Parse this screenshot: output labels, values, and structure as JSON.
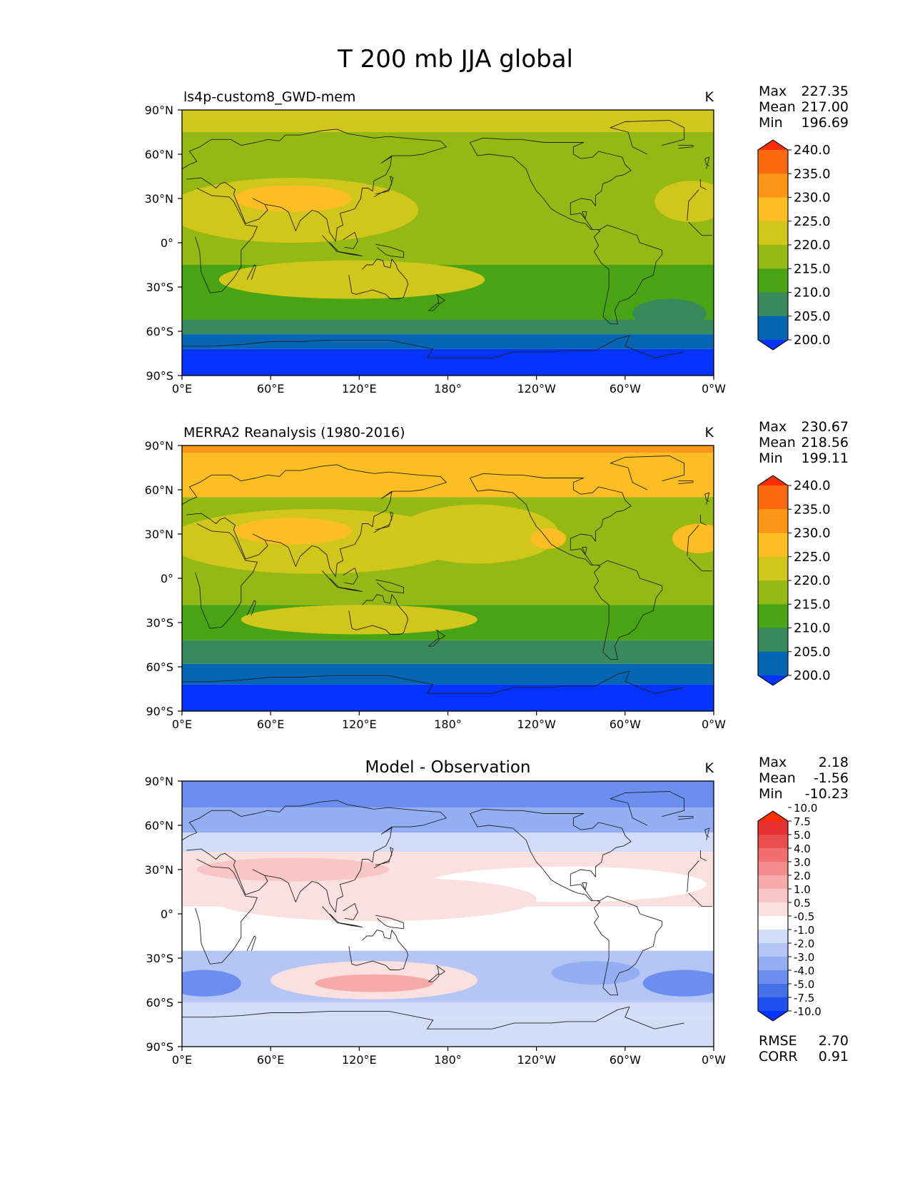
{
  "figure": {
    "title": "T 200 mb JJA global",
    "units": "K",
    "x_ticks": [
      "0°E",
      "60°E",
      "120°E",
      "180°",
      "120°W",
      "60°W",
      "0°W"
    ],
    "y_ticks": [
      "90°N",
      "60°N",
      "30°N",
      "0°",
      "30°S",
      "60°S",
      "90°S"
    ],
    "stat_labels": [
      "Max",
      "Mean",
      "Min"
    ],
    "extra_stat_labels": [
      "RMSE",
      "CORR"
    ],
    "colors": {
      "cb_abs": [
        "#0434fc",
        "#0466b2",
        "#388a5c",
        "#48a414",
        "#94b814",
        "#d0c61c",
        "#fcbe22",
        "#fc9618",
        "#fc6a10",
        "#fc2e06"
      ],
      "cb_diff": [
        "#0434fc",
        "#1e50f0",
        "#4670e6",
        "#6c8ef0",
        "#94aef4",
        "#b6c6f4",
        "#d4ddf8",
        "#ffffff",
        "#fbe0e0",
        "#f8c6c6",
        "#f6aaaa",
        "#f48c8c",
        "#f06e6e",
        "#ea4e4e",
        "#e43030",
        "#fc2e06"
      ]
    }
  },
  "chart_data": [
    {
      "type": "heatmap",
      "panel": "test",
      "title": "ls4p-custom8_GWD-mem",
      "title_style": "left",
      "units": "K",
      "stats": {
        "Max": "227.35",
        "Mean": "217.00",
        "Min": "196.69"
      },
      "colorbar": {
        "levels": [
          "200.0",
          "205.0",
          "210.0",
          "215.0",
          "220.0",
          "225.0",
          "230.0",
          "235.0",
          "240.0"
        ],
        "extend": "both"
      },
      "xlim": [
        0,
        360
      ],
      "ylim": [
        -90,
        90
      ],
      "zonal_bands": [
        {
          "lat": [
            75,
            90
          ],
          "value": 220
        },
        {
          "lat": [
            -15,
            75
          ],
          "value": 215
        },
        {
          "lat": [
            -52,
            -15
          ],
          "value": 210
        },
        {
          "lat": [
            -62,
            -52
          ],
          "value": 205
        },
        {
          "lat": [
            -72,
            -62
          ],
          "value": 200
        },
        {
          "lat": [
            -90,
            -72
          ],
          "value": 195
        }
      ],
      "regions": [
        {
          "lon": 75,
          "lat": 22,
          "rlon": 85,
          "rlat": 22,
          "value": 220
        },
        {
          "lon": 75,
          "lat": 30,
          "rlon": 40,
          "rlat": 9,
          "value": 225
        },
        {
          "lon": 115,
          "lat": -25,
          "rlon": 90,
          "rlat": 13,
          "value": 220
        },
        {
          "lon": 345,
          "lat": 28,
          "rlon": 25,
          "rlat": 14,
          "value": 220
        },
        {
          "lon": 200,
          "lat": 82,
          "rlon": 190,
          "rlat": 7,
          "value": 220
        },
        {
          "lon": 330,
          "lat": -48,
          "rlon": 25,
          "rlat": 10,
          "value": 205
        }
      ]
    },
    {
      "type": "heatmap",
      "panel": "reference",
      "title": "MERRA2 Reanalysis (1980-2016)",
      "title_style": "left",
      "units": "K",
      "stats": {
        "Max": "230.67",
        "Mean": "218.56",
        "Min": "199.11"
      },
      "colorbar": {
        "levels": [
          "200.0",
          "205.0",
          "210.0",
          "215.0",
          "220.0",
          "225.0",
          "230.0",
          "235.0",
          "240.0"
        ],
        "extend": "both"
      },
      "xlim": [
        0,
        360
      ],
      "ylim": [
        -90,
        90
      ],
      "zonal_bands": [
        {
          "lat": [
            85,
            90
          ],
          "value": 230
        },
        {
          "lat": [
            55,
            85
          ],
          "value": 225
        },
        {
          "lat": [
            -18,
            55
          ],
          "value": 215
        },
        {
          "lat": [
            -42,
            -18
          ],
          "value": 210
        },
        {
          "lat": [
            -58,
            -42
          ],
          "value": 205
        },
        {
          "lat": [
            -72,
            -58
          ],
          "value": 200
        },
        {
          "lat": [
            -90,
            -72
          ],
          "value": 195
        }
      ],
      "regions": [
        {
          "lon": 90,
          "lat": 25,
          "rlon": 100,
          "rlat": 22,
          "value": 220
        },
        {
          "lon": 200,
          "lat": 30,
          "rlon": 55,
          "rlat": 20,
          "value": 220
        },
        {
          "lon": 75,
          "lat": 32,
          "rlon": 40,
          "rlat": 9,
          "value": 225
        },
        {
          "lon": 120,
          "lat": -28,
          "rlon": 80,
          "rlat": 10,
          "value": 220
        },
        {
          "lon": 248,
          "lat": 27,
          "rlon": 12,
          "rlat": 7,
          "value": 225
        },
        {
          "lon": 350,
          "lat": 27,
          "rlon": 18,
          "rlat": 10,
          "value": 225
        }
      ]
    },
    {
      "type": "heatmap",
      "panel": "difference",
      "title": "Model - Observation",
      "title_style": "center",
      "units": "K",
      "stats": {
        "Max": "2.18",
        "Mean": "-1.56",
        "Min": "-10.23"
      },
      "extra_stats": {
        "RMSE": "2.70",
        "CORR": "0.91"
      },
      "colorbar": {
        "levels": [
          "-10.0",
          "-7.5",
          "-5.0",
          "-4.0",
          "-3.0",
          "-2.0",
          "-1.0",
          "-0.5",
          "0.5",
          "1.0",
          "2.0",
          "3.0",
          "4.0",
          "5.0",
          "7.5",
          "10.0"
        ],
        "extend": "both"
      },
      "xlim": [
        0,
        360
      ],
      "ylim": [
        -90,
        90
      ],
      "zonal_bands": [
        {
          "lat": [
            72,
            90
          ],
          "value": -4.5
        },
        {
          "lat": [
            55,
            72
          ],
          "value": -3.5
        },
        {
          "lat": [
            42,
            55
          ],
          "value": -1.5
        },
        {
          "lat": [
            5,
            42
          ],
          "value": 0
        },
        {
          "lat": [
            -25,
            5
          ],
          "value": -0.8
        },
        {
          "lat": [
            -60,
            -25
          ],
          "value": -2.5
        },
        {
          "lat": [
            -70,
            -60
          ],
          "value": -2
        },
        {
          "lat": [
            -90,
            -70
          ],
          "value": -1.5
        }
      ],
      "regions": [
        {
          "lon": 260,
          "lat": 20,
          "rlon": 95,
          "rlat": 12,
          "value": -0.8
        },
        {
          "lon": 130,
          "lat": 10,
          "rlon": 110,
          "rlat": 15,
          "value": 0
        },
        {
          "lon": 75,
          "lat": 30,
          "rlon": 65,
          "rlat": 8,
          "value": 0.7
        },
        {
          "lon": 130,
          "lat": -45,
          "rlon": 70,
          "rlat": 13,
          "value": 0
        },
        {
          "lon": 130,
          "lat": -47,
          "rlon": 40,
          "rlat": 6,
          "value": 1.5
        },
        {
          "lon": 15,
          "lat": -47,
          "rlon": 25,
          "rlat": 9,
          "value": -4.5
        },
        {
          "lon": 340,
          "lat": -47,
          "rlon": 28,
          "rlat": 9,
          "value": -4.5
        },
        {
          "lon": 280,
          "lat": -40,
          "rlon": 30,
          "rlat": 8,
          "value": -3.5
        }
      ]
    }
  ]
}
